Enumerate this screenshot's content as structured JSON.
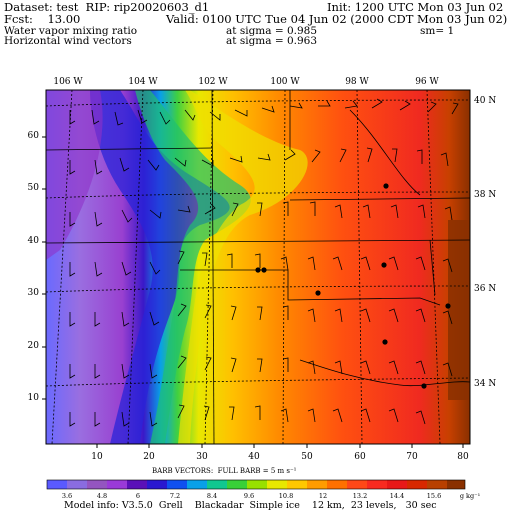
{
  "header": {
    "dataset": "Dataset: test  RIP: rip20020603_d1",
    "init": "Init: 1200 UTC Mon 03 Jun 02",
    "fcst": "Fcst:    13.00",
    "valid": "Valid: 0100 UTC Tue 04 Jun 02 (2000 CDT Mon 03 Jun 02)",
    "field1": "Water vapor mixing ratio",
    "field1_level": "at sigma = 0.985",
    "sm": "sm= 1",
    "field2": "Horizontal wind vectors",
    "field2_level": "at sigma = 0.963"
  },
  "map": {
    "lon_labels": [
      "106 W",
      "104 W",
      "102 W",
      "100 W",
      "98 W",
      "96 W"
    ],
    "lat_labels": [
      "40 N",
      "38 N",
      "36 N",
      "34 N"
    ],
    "x_ticks": [
      "10",
      "20",
      "30",
      "40",
      "50",
      "60",
      "70",
      "80"
    ],
    "y_ticks": [
      "10",
      "20",
      "30",
      "40",
      "50",
      "60"
    ],
    "cities_icon": "city-dot",
    "wind_barbs_icon": "wind-barb"
  },
  "colorbar": {
    "title": "BARB VECTORS:  FULL BARB = 5 m s⁻¹",
    "labels": [
      "3.6",
      "4.8",
      "6",
      "7.2",
      "8.4",
      "9.6",
      "10.8",
      "12",
      "13.2",
      "14.4",
      "15.6"
    ],
    "units": "g kg⁻¹",
    "colors": [
      "#5a5aff",
      "#8a6ce0",
      "#9455c0",
      "#9a3ad8",
      "#5a10b8",
      "#2a18d0",
      "#1050f0",
      "#08a0e8",
      "#10c890",
      "#38d038",
      "#98e000",
      "#e8e800",
      "#ffc800",
      "#ff9c00",
      "#ff7000",
      "#ff4818",
      "#f82a20",
      "#e81818",
      "#d82800",
      "#b84000",
      "#8a3000"
    ]
  },
  "footer": "Model info: V3.5.0  Grell    Blackadar  Simple ice    12 km,  23 levels,   30 sec"
}
